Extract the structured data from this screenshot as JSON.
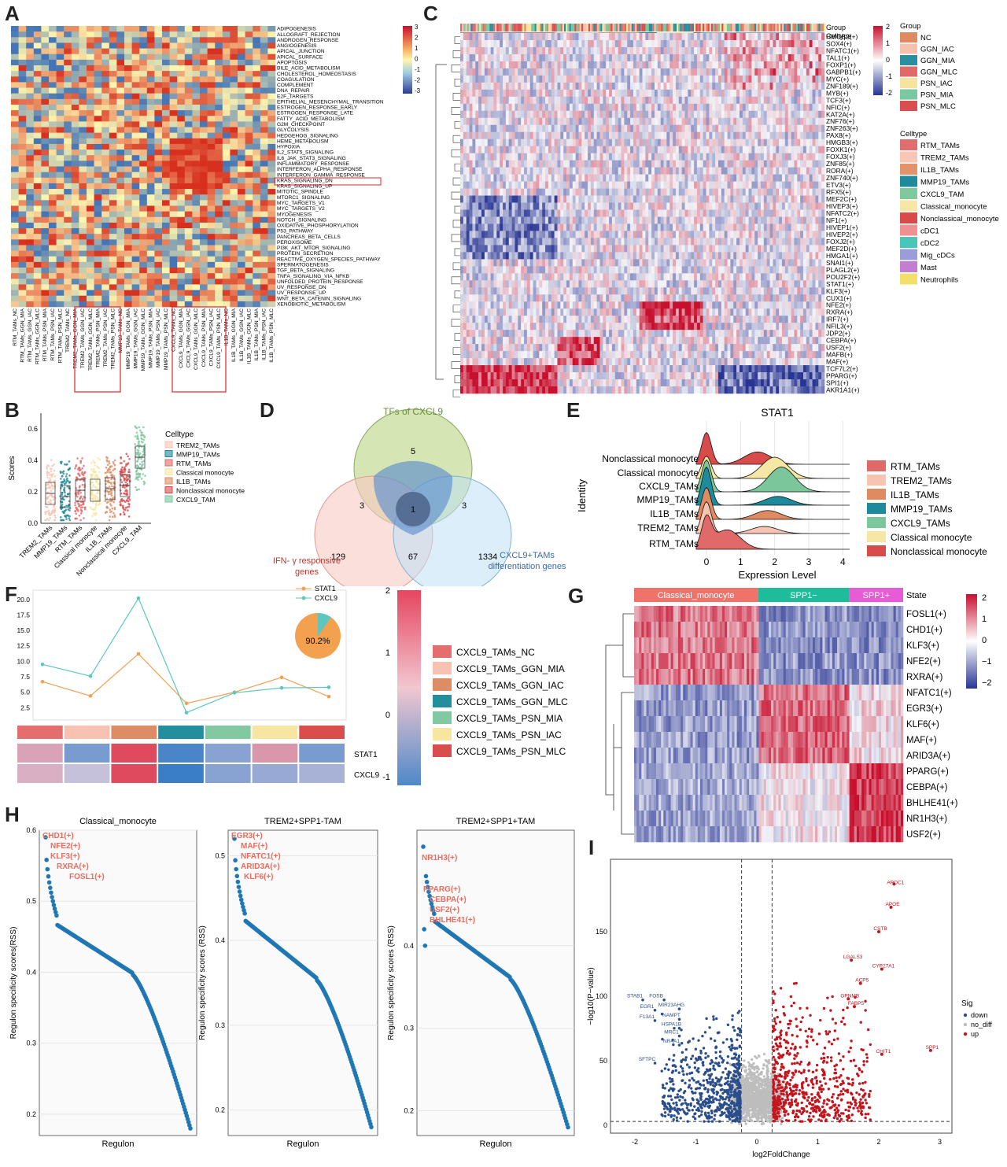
{
  "panels": {
    "A": {
      "letter": "A",
      "pathways": [
        "ADIPOGENESIS",
        "ALLOGRAFT_REJECTION",
        "ANDROGEN_RESPONSE",
        "ANGIOGENESIS",
        "APICAL_JUNCTION",
        "APICAL_SURFACE",
        "APOPTOSIS",
        "BILE_ACID_METABOLISM",
        "CHOLESTEROL_HOMEOSTASIS",
        "COAGULATION",
        "COMPLEMENT",
        "DNA_REPAIR",
        "E2F_TARGETS",
        "EPITHELIAL_MESENCHYMAL_TRANSITION",
        "ESTROGEN_RESPONSE_EARLY",
        "ESTROGEN_RESPONSE_LATE",
        "FATTY_ACID_METABOLISM",
        "G2M_CHECKPOINT",
        "GLYCOLYSIS",
        "HEDGEHOG_SIGNALING",
        "HEME_METABOLISM",
        "HYPOXIA",
        "IL2_STAT5_SIGNALING",
        "IL6_JAK_STAT3_SIGNALING",
        "INFLAMMATORY_RESPONSE",
        "INTERFERON_ALPHA_RESPONSE",
        "INTERFERON_GAMMA_RESPONSE",
        "KRAS_SIGNALING_DN",
        "KRAS_SIGNALING_UP",
        "MITOTIC_SPINDLE",
        "MTORC1_SIGNALING",
        "MYC_TARGETS_V1",
        "MYC_TARGETS_V2",
        "MYOGENESIS",
        "NOTCH_SIGNALING",
        "OXIDATIVE_PHOSPHORYLATION",
        "P53_PATHWAY",
        "PANCREAS_BETA_CELLS",
        "PEROXISOME",
        "PI3K_AKT_MTOR_SIGNALING",
        "PROTEIN_SECRETION",
        "REACTIVE_OXYGEN_SPECIES_PATHWAY",
        "SPERMATOGENESIS",
        "TGF_BETA_SIGNALING",
        "TNFA_SIGNALING_VIA_NFKB",
        "UNFOLDED_PROTEIN_RESPONSE",
        "UV_RESPONSE_DN",
        "UV_RESPONSE_UP",
        "WNT_BETA_CATENIN_SIGNALING",
        "XENOBIOTIC_METABOLISM"
      ],
      "columns": [
        "RTM_TAMs_NC",
        "RTM_TAMs_GGN_MIA",
        "RTM_TAMs_GGN_IAC",
        "RTM_TAMs_GGN_MLC",
        "RTM_TAMs_PSN_MIA",
        "RTM_TAMs_PSN_IAC",
        "RTM_TAMs_PSN_MLC",
        "TREM2_TAMs_NC",
        "TREM2_TAMs_GGN_MIA",
        "TREM2_TAMs_GGN_IAC",
        "TREM2_TAMs_GGN_MLC",
        "TREM2_TAMs_PSN_MIA",
        "TREM2_TAMs_PSN_IAC",
        "TREM2_TAMs_PSN_MLC",
        "MMP19_TAMs_NC",
        "MMP19_TAMs_GGN_MIA",
        "MMP19_TAMs_GGN_IAC",
        "MMP19_TAMs_GGN_MLC",
        "MMP19_TAMs_PSN_MIA",
        "MMP19_TAMs_PSN_IAC",
        "MMP19_TAMs_PSN_MLC",
        "CXCL9_TAMs_NC",
        "CXCL9_TAMs_GGN_MIA",
        "CXCL9_TAMs_GGN_IAC",
        "CXCL9_TAMs_GGN_MLC",
        "CXCL9_TAMs_PSN_MIA",
        "CXCL9_TAMs_PSN_IAC",
        "CXCL9_TAMs_PSN_MLC",
        "IL1B_TAMs_NC",
        "IL1B_TAMs_GGN_MIA",
        "IL1B_TAMs_GGN_IAC",
        "IL1B_TAMs_GGN_MLC",
        "IL1B_TAMs_PSN_MIA",
        "IL1B_TAMs_PSN_IAC",
        "IL1B_TAMs_PSN_MLC"
      ],
      "scale_ticks": [
        "3",
        "2",
        "1",
        "0",
        "-1",
        "-2",
        "-3"
      ]
    },
    "B": {
      "letter": "B",
      "ylabel": "Scores",
      "yticks": [
        "0.6",
        "0.4",
        "0.2",
        "0.0"
      ],
      "legend_title": "Celltype",
      "legend": [
        "TREM2_TAMs",
        "MMP19_TAMs",
        "RTM_TAMs",
        "Classical monocyte",
        "IL1B_TAMs",
        "Nonclassical monocyte",
        "CXCL9_TAM"
      ],
      "xlabels": [
        "TREM2_TAMs",
        "MMP19_TAMs",
        "RTM_TAMs",
        "Classical monocyte",
        "IL1B_TAMs",
        "Nonclassical monocyte",
        "CXCL9_TAM"
      ]
    },
    "C": {
      "letter": "C",
      "row_labels": [
        "Group",
        "Celltype"
      ],
      "regulons": [
        "HMGB2(+)",
        "SOX4(+)",
        "NFATC1(+)",
        "TAL1(+)",
        "FOXP1(+)",
        "GABPB1(+)",
        "MYC(+)",
        "ZNF189(+)",
        "MYB(+)",
        "TCF3(+)",
        "NFIC(+)",
        "KAT2A(+)",
        "ZNF76(+)",
        "ZNF263(+)",
        "PAX8(+)",
        "HMGB3(+)",
        "FOXK1(+)",
        "FOXJ3(+)",
        "ZNF85(+)",
        "RORA(+)",
        "ZNF740(+)",
        "ETV3(+)",
        "RFX5(+)",
        "MEF2C(+)",
        "HIVEP3(+)",
        "NFATC2(+)",
        "NF1(+)",
        "HIVEP1(+)",
        "HIVEP2(+)",
        "FOXJ2(+)",
        "MEF2D(+)",
        "HMGA1(+)",
        "SNAI1(+)",
        "PLAGL2(+)",
        "POU2F2(+)",
        "STAT1(+)",
        "KLF3(+)",
        "CUX1(+)",
        "NFE2(+)",
        "RXRA(+)",
        "IRF7(+)",
        "NFIL3(+)",
        "JDP2(+)",
        "CEBPA(+)",
        "USF2(+)",
        "MAFB(+)",
        "MAF(+)",
        "TCF7L2(+)",
        "PPARG(+)",
        "SPI1(+)",
        "AKR1A1(+)"
      ],
      "scale_ticks": [
        "2",
        "1",
        "0",
        "-1",
        "-2"
      ],
      "group_title": "Group",
      "groups": [
        {
          "name": "NC",
          "color": "#e08a62"
        },
        {
          "name": "GGN_IAC",
          "color": "#f6c1ad"
        },
        {
          "name": "GGN_MIA",
          "color": "#2a8ea1"
        },
        {
          "name": "GGN_MLC",
          "color": "#e06a6a"
        },
        {
          "name": "PSN_IAC",
          "color": "#f5e3a0"
        },
        {
          "name": "PSN_MIA",
          "color": "#78c8a0"
        },
        {
          "name": "PSN_MLC",
          "color": "#d94f4f"
        }
      ],
      "celltype_title": "Celltype",
      "celltypes": [
        {
          "name": "RTM_TAMs",
          "color": "#e06e6e"
        },
        {
          "name": "TREM2_TAMs",
          "color": "#f8c6b4"
        },
        {
          "name": "IL1B_TAMs",
          "color": "#e0936c"
        },
        {
          "name": "MMP19_TAMs",
          "color": "#1f8a99"
        },
        {
          "name": "CXCL9_TAM",
          "color": "#80c99c"
        },
        {
          "name": "Classical_monocyte",
          "color": "#f7e6a6"
        },
        {
          "name": "Nonclassical_monocyte",
          "color": "#d94a4a"
        },
        {
          "name": "cDC1",
          "color": "#f09090"
        },
        {
          "name": "cDC2",
          "color": "#48c6b8"
        },
        {
          "name": "Mig_cDCs",
          "color": "#9a9ed6"
        },
        {
          "name": "Mast",
          "color": "#c27fd0"
        },
        {
          "name": "Neutrophils",
          "color": "#f2e06a"
        }
      ]
    },
    "D": {
      "letter": "D",
      "set_top": "TFs of CXCL9",
      "set_left_line1": "IFN- γ responsive",
      "set_left_line2": "genes",
      "set_right_line1": "CXCL9+TAMs",
      "set_right_line2": "differentiation genes",
      "counts": {
        "top_only": "5",
        "left_only": "129",
        "right_only": "1334",
        "top_left": "3",
        "top_right": "3",
        "left_right": "67",
        "all": "1"
      }
    },
    "E": {
      "letter": "E",
      "title": "STAT1",
      "ylabel": "Identity",
      "xlabel": "Expression Level",
      "xticks": [
        "0",
        "1",
        "2",
        "3",
        "4"
      ],
      "identities": [
        "Nonclassical monocyte",
        "Classical monocyte",
        "CXCL9_TAMs",
        "MMP19_TAMs",
        "IL1B_TAMs",
        "TREM2_TAMs",
        "RTM_TAMs"
      ],
      "legend": [
        {
          "name": "RTM_TAMs",
          "color": "#e06a6a"
        },
        {
          "name": "TREM2_TAMs",
          "color": "#f8c4b2"
        },
        {
          "name": "IL1B_TAMs",
          "color": "#e08a62"
        },
        {
          "name": "MMP19_TAMs",
          "color": "#1d8b9b"
        },
        {
          "name": "CXCL9_TAMs",
          "color": "#7cc69c"
        },
        {
          "name": "Classical monocyte",
          "color": "#f6e7a4"
        },
        {
          "name": "Nonclassical monocyte",
          "color": "#d94a4a"
        }
      ]
    },
    "F": {
      "letter": "F",
      "yticks": [
        "20.0",
        "17.5",
        "15.0",
        "12.5",
        "10.0",
        "7.5",
        "5.0",
        "2.5"
      ],
      "series_labels": [
        "STAT1",
        "CXCL9"
      ],
      "pie_label": "90.2%",
      "scale_ticks": [
        "2",
        "1",
        "0",
        "-1"
      ],
      "row_labels": [
        "STAT1",
        "CXCL9"
      ],
      "legend": [
        {
          "name": "CXCL9_TAMs_NC",
          "color": "#e46e6e"
        },
        {
          "name": "CXCL9_TAMs_GGN_MIA",
          "color": "#f7c2b1"
        },
        {
          "name": "CXCL9_TAMs_GGN_IAC",
          "color": "#de8c66"
        },
        {
          "name": "CXCL9_TAMs_GGN_MLC",
          "color": "#238f9e"
        },
        {
          "name": "CXCL9_TAMs_PSN_MIA",
          "color": "#82c9a1"
        },
        {
          "name": "CXCL9_TAMs_PSN_IAC",
          "color": "#f7e6a1"
        },
        {
          "name": "CXCL9_TAMs_PSN_MLC",
          "color": "#d94d4d"
        }
      ]
    },
    "G": {
      "letter": "G",
      "state_label": "State",
      "states": [
        "Classical_monocyte",
        "SPP1−",
        "SPP1+"
      ],
      "regulons": [
        "FOSL1(+)",
        "CHD1(+)",
        "KLF3(+)",
        "NFE2(+)",
        "RXRA(+)",
        "NFATC1(+)",
        "EGR3(+)",
        "KLF6(+)",
        "MAF(+)",
        "ARID3A(+)",
        "PPARG(+)",
        "CEBPA(+)",
        "BHLHE41(+)",
        "NR1H3(+)",
        "USF2(+)"
      ],
      "scale_ticks": [
        "2",
        "1",
        "0",
        "−1",
        "−2"
      ]
    },
    "H": {
      "letter": "H",
      "ylabel": "Regulon specificity scores(RSS)",
      "ylabel2": "Regulon specificity scores (RSS)",
      "xlabel": "Regulon",
      "plots": [
        {
          "title": "Classical_monocyte",
          "yticks": [
            "0.6",
            "0.5",
            "0.4",
            "0.3",
            "0.2"
          ],
          "labels": [
            "CHD1(+)",
            "NFE2(+)",
            "KLF3(+)",
            "RXRA(+)",
            "FOSL1(+)"
          ]
        },
        {
          "title": "TREM2+SPP1-TAM",
          "yticks": [
            "0.5",
            "0.4",
            "0.3",
            "0.2"
          ],
          "labels": [
            "EGR3(+)",
            "MAF(+)",
            "NFATC1(+)",
            "ARID3A(+)",
            "KLF6(+)"
          ]
        },
        {
          "title": "TREM2+SPP1+TAM",
          "yticks": [
            "0.4",
            "0.3",
            "0.2"
          ],
          "labels": [
            "NR1H3(+)",
            "PPARG(+)",
            "CEBPA(+)",
            "USF2(+)",
            "BHLHE41(+)"
          ]
        }
      ]
    },
    "I": {
      "letter": "I",
      "xlabel": "log2FoldChange",
      "ylabel": "−log10(P−value)",
      "xticks": [
        "-2",
        "-1",
        "0",
        "1",
        "2",
        "3"
      ],
      "yticks": [
        "150",
        "100",
        "50",
        "0"
      ],
      "legend_title": "Sig",
      "legend": [
        {
          "name": "down",
          "color": "#2a4e8c"
        },
        {
          "name": "no_diff",
          "color": "#bdbdbd"
        },
        {
          "name": "up",
          "color": "#c4141c"
        }
      ],
      "up_genes": [
        "APOC1",
        "APOE",
        "CSTB",
        "LGALS3",
        "CYP27A1",
        "ACP5",
        "GPNMB",
        "FABP5",
        "SPP1",
        "CHIT1"
      ],
      "down_genes": [
        "STAB1",
        "FOSB",
        "EGR1",
        "MIR23AHG",
        "NAMPT",
        "F13A1",
        "HSPA1B",
        "MRC1",
        "NR4A1",
        "SFTPC"
      ]
    }
  }
}
